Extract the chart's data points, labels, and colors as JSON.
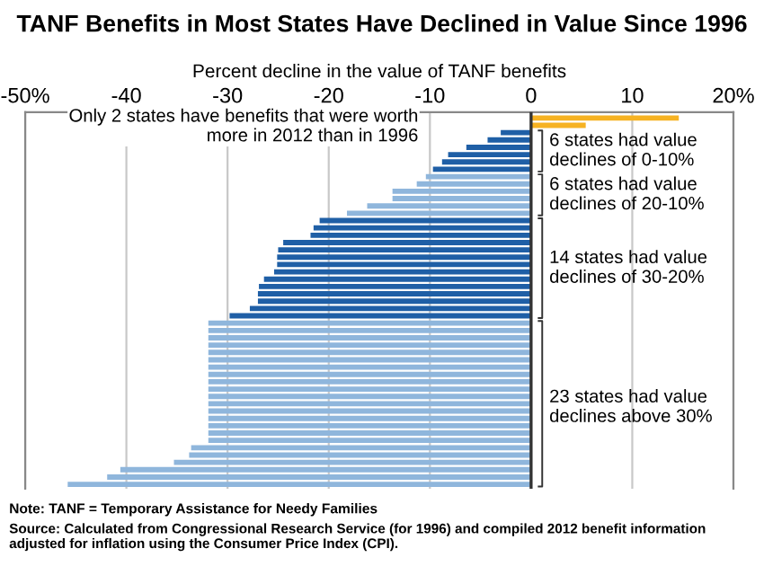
{
  "chart_data": {
    "type": "bar",
    "orientation": "horizontal",
    "title": "TANF Benefits in Most States Have Declined in Value Since 1996",
    "xlabel": "Percent decline in the value of TANF benefits",
    "categories": [
      null,
      null,
      null,
      null,
      null,
      null,
      null,
      null,
      null,
      null,
      null,
      null,
      null,
      null,
      null,
      null,
      null,
      null,
      null,
      null,
      null,
      null,
      null,
      null,
      null,
      null,
      null,
      null,
      null,
      null,
      null,
      null,
      null,
      null,
      null,
      null,
      null,
      null,
      null,
      null,
      null,
      null,
      null,
      null,
      null,
      null,
      null,
      null,
      null,
      null,
      null
    ],
    "values": [
      14.6,
      5.4,
      -3.0,
      -4.3,
      -6.4,
      -8.2,
      -8.8,
      -9.7,
      -10.4,
      -11.3,
      -13.7,
      -13.7,
      -16.2,
      -18.2,
      -20.9,
      -21.5,
      -21.8,
      -24.5,
      -25.0,
      -25.1,
      -25.1,
      -25.4,
      -26.4,
      -26.9,
      -27.0,
      -27.0,
      -27.8,
      -29.8,
      -31.9,
      -31.9,
      -31.9,
      -31.9,
      -31.9,
      -31.9,
      -31.9,
      -31.9,
      -31.9,
      -31.9,
      -31.9,
      -31.9,
      -31.9,
      -31.9,
      -31.9,
      -31.9,
      -31.9,
      -33.6,
      -33.8,
      -35.3,
      -40.6,
      -41.9,
      -45.8
    ],
    "colors": [
      "#f6b222",
      "#f6b222",
      "#1f5fa6",
      "#1f5fa6",
      "#1f5fa6",
      "#1f5fa6",
      "#1f5fa6",
      "#1f5fa6",
      "#8fb6dc",
      "#8fb6dc",
      "#8fb6dc",
      "#8fb6dc",
      "#8fb6dc",
      "#8fb6dc",
      "#1f5fa6",
      "#1f5fa6",
      "#1f5fa6",
      "#1f5fa6",
      "#1f5fa6",
      "#1f5fa6",
      "#1f5fa6",
      "#1f5fa6",
      "#1f5fa6",
      "#1f5fa6",
      "#1f5fa6",
      "#1f5fa6",
      "#1f5fa6",
      "#1f5fa6",
      "#8fb6dc",
      "#8fb6dc",
      "#8fb6dc",
      "#8fb6dc",
      "#8fb6dc",
      "#8fb6dc",
      "#8fb6dc",
      "#8fb6dc",
      "#8fb6dc",
      "#8fb6dc",
      "#8fb6dc",
      "#8fb6dc",
      "#8fb6dc",
      "#8fb6dc",
      "#8fb6dc",
      "#8fb6dc",
      "#8fb6dc",
      "#8fb6dc",
      "#8fb6dc",
      "#8fb6dc",
      "#8fb6dc",
      "#8fb6dc",
      "#8fb6dc"
    ],
    "xlim": [
      -50,
      20
    ],
    "xticks": [
      {
        "value": -50,
        "label": "-50%"
      },
      {
        "value": -40,
        "label": "-40"
      },
      {
        "value": -30,
        "label": "-30"
      },
      {
        "value": -20,
        "label": "-20"
      },
      {
        "value": -10,
        "label": "-10"
      },
      0,
      10,
      {
        "value": 20,
        "label": "20%"
      }
    ],
    "grid": "x",
    "annotations": [
      "Only 2 states have benefits that were worth\nmore in 2012 than in 1996",
      "6 states had value\ndeclines of 0-10%",
      "6 states had value\ndeclines of 20-10%",
      "14 states had value\ndeclines of 30-20%",
      "23 states had value\ndeclines above 30%",
      "Note: TANF = Temporary Assistance for Needy Families",
      "Source: Calculated from Congressional Research Service (for 1996) and compiled 2012 benefit information\nadjusted for inflation using the Consumer Price Index (CPI)."
    ]
  }
}
